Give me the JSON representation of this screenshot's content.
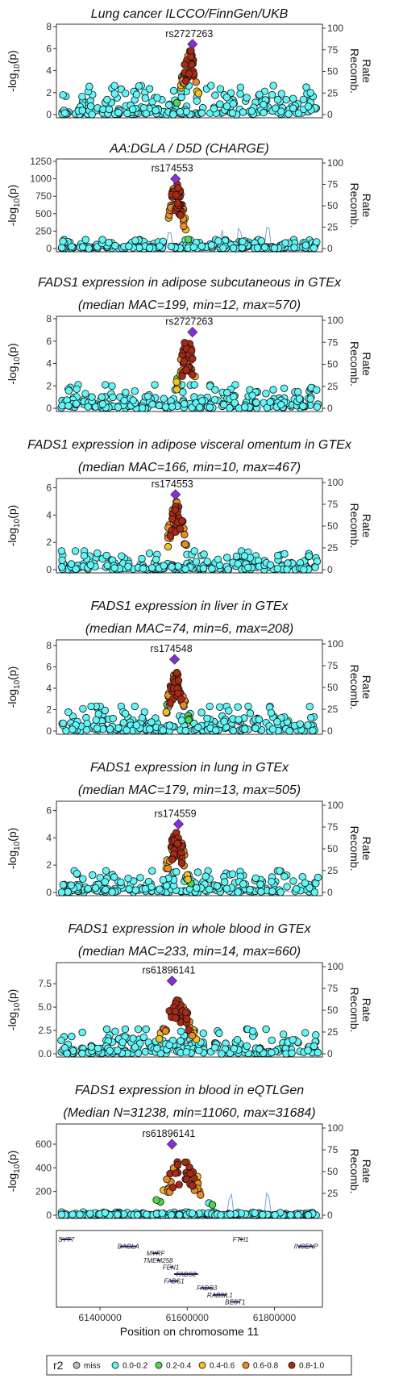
{
  "chart_data": {
    "type": "scatter",
    "description_axes": {
      "left_axis_label_prefix": "-log",
      "left_axis_label_sub": "10",
      "left_axis_label_suffix": "(p)",
      "right_axis_label_1": "Recomb.",
      "right_axis_label_2": "Rate",
      "right_ticks": [
        0,
        25,
        50,
        75,
        100
      ]
    },
    "x_axis": {
      "label": "Position on chromosome 11",
      "xlim": [
        61300000,
        61910000
      ],
      "ticks": [
        61400000,
        61600000,
        61800000
      ],
      "tick_labels": [
        "61400000",
        "61600000",
        "61800000"
      ]
    },
    "panels": [
      {
        "id": "lung-cancer",
        "title_lines": [
          "Lung cancer ILCCO/FinnGen/UKB"
        ],
        "ylim": [
          0,
          8
        ],
        "yticks": [
          0,
          2,
          4,
          6,
          8
        ],
        "ytick_labels": [
          "0",
          "2",
          "4",
          "6",
          "8"
        ],
        "lead_snp": "rs2727263",
        "lead_x": 61612000,
        "lead_y": 6.4,
        "peak_x": 61605000,
        "peak_y": 6.0,
        "peak_width": 22000,
        "baseline_max": 2.5,
        "recomb_spikes": []
      },
      {
        "id": "aa-dgla",
        "title_lines": [
          "AA:DGLA / D5D (CHARGE)"
        ],
        "ylim": [
          0,
          1250
        ],
        "yticks": [
          0,
          250,
          500,
          750,
          1000,
          1250
        ],
        "ytick_labels": [
          "0",
          "250",
          "500",
          "750",
          "1000",
          "1250"
        ],
        "lead_snp": "rs174553",
        "lead_x": 61573000,
        "lead_y": 1000,
        "peak_x": 61575000,
        "peak_y": 980,
        "peak_width": 20000,
        "baseline_max": 120,
        "recomb_spikes": [
          61560000,
          61680000,
          61720000,
          61785000
        ]
      },
      {
        "id": "adipose-subq",
        "title_lines": [
          "FADS1 expression in adipose subcutaneous in GTEx",
          "(median MAC=199, min=12, max=570)"
        ],
        "ylim": [
          0,
          8
        ],
        "yticks": [
          0,
          2,
          4,
          6,
          8
        ],
        "ytick_labels": [
          "0",
          "2",
          "4",
          "6",
          "8"
        ],
        "lead_snp": "rs2727263",
        "lead_x": 61612000,
        "lead_y": 6.8,
        "peak_x": 61600000,
        "peak_y": 6.2,
        "peak_width": 24000,
        "baseline_max": 2.0,
        "recomb_spikes": []
      },
      {
        "id": "adipose-visceral",
        "title_lines": [
          "FADS1 expression in adipose visceral omentum in GTEx",
          "(median MAC=166, min=10, max=467)"
        ],
        "ylim": [
          0,
          6.5
        ],
        "yticks": [
          0,
          2,
          4,
          6
        ],
        "ytick_labels": [
          "0",
          "2",
          "4",
          "6"
        ],
        "lead_snp": "rs174553",
        "lead_x": 61573000,
        "lead_y": 5.5,
        "peak_x": 61575000,
        "peak_y": 5.0,
        "peak_width": 24000,
        "baseline_max": 1.3,
        "recomb_spikes": []
      },
      {
        "id": "liver",
        "title_lines": [
          "FADS1 expression in liver in GTEx",
          "(median MAC=74, min=6, max=208)"
        ],
        "ylim": [
          0,
          8.3
        ],
        "yticks": [
          0,
          2,
          4,
          6,
          8
        ],
        "ytick_labels": [
          "0",
          "2",
          "4",
          "6",
          "8"
        ],
        "lead_snp": "rs174548",
        "lead_x": 61571000,
        "lead_y": 6.7,
        "peak_x": 61575000,
        "peak_y": 5.8,
        "peak_width": 24000,
        "baseline_max": 2.2,
        "recomb_spikes": []
      },
      {
        "id": "lung",
        "title_lines": [
          "FADS1 expression in lung in GTEx",
          "(median MAC=179, min=13, max=505)"
        ],
        "ylim": [
          0,
          6.5
        ],
        "yticks": [
          0,
          2,
          4,
          6
        ],
        "ytick_labels": [
          "0",
          "2",
          "4",
          "6"
        ],
        "lead_snp": "rs174559",
        "lead_x": 61580000,
        "lead_y": 5.0,
        "peak_x": 61575000,
        "peak_y": 4.6,
        "peak_width": 24000,
        "baseline_max": 1.5,
        "recomb_spikes": []
      },
      {
        "id": "whole-blood",
        "title_lines": [
          "FADS1 expression in whole blood in GTEx",
          "(median MAC=233, min=14, max=660)"
        ],
        "ylim": [
          0,
          9.5
        ],
        "yticks": [
          0,
          2.5,
          5,
          7.5
        ],
        "ytick_labels": [
          "0.0",
          "2.5",
          "5.0",
          "7.5"
        ],
        "lead_snp": "rs61896141",
        "lead_x": 61565000,
        "lead_y": 7.8,
        "peak_x": 61580000,
        "peak_y": 5.8,
        "peak_width": 40000,
        "baseline_max": 2.5,
        "recomb_spikes": []
      },
      {
        "id": "eqtlgen",
        "title_lines": [
          "FADS1 expression in blood in eQTLGen",
          "(Median N=31238, min=11060, max=31684)"
        ],
        "ylim": [
          0,
          750
        ],
        "yticks": [
          0,
          200,
          400,
          600
        ],
        "ytick_labels": [
          "0",
          "200",
          "400",
          "600"
        ],
        "lead_snp": "rs61896141",
        "lead_x": 61565000,
        "lead_y": 600,
        "peak_x": 61590000,
        "peak_y": 480,
        "peak_width": 50000,
        "baseline_max": 25,
        "recomb_spikes": [
          61700000,
          61785000
        ]
      }
    ],
    "genes": [
      {
        "name": "SYT7",
        "start": 61310000,
        "end": 61335000,
        "row": 0
      },
      {
        "name": "FTH1",
        "start": 61720000,
        "end": 61725000,
        "row": 0
      },
      {
        "name": "DAGLA",
        "start": 61445000,
        "end": 61485000,
        "row": 1
      },
      {
        "name": "INCENP",
        "start": 61855000,
        "end": 61890000,
        "row": 1
      },
      {
        "name": "MYRF",
        "start": 61520000,
        "end": 61535000,
        "row": 2
      },
      {
        "name": "TMEM258",
        "start": 61530000,
        "end": 61536000,
        "row": 3
      },
      {
        "name": "FEN1",
        "start": 61560000,
        "end": 61565000,
        "row": 4
      },
      {
        "name": "FADS2",
        "start": 61570000,
        "end": 61625000,
        "row": 5
      },
      {
        "name": "FADS1",
        "start": 61560000,
        "end": 61580000,
        "row": 6
      },
      {
        "name": "FADS3",
        "start": 61630000,
        "end": 61660000,
        "row": 7
      },
      {
        "name": "RAB3IL1",
        "start": 61660000,
        "end": 61690000,
        "row": 8
      },
      {
        "name": "BEST1",
        "start": 61700000,
        "end": 61720000,
        "row": 9
      }
    ],
    "legend": {
      "title": "r2",
      "placement": "bottom",
      "items": [
        {
          "label": "miss",
          "color": "#bebebe"
        },
        {
          "label": "0.0-0.2",
          "color": "#5ef6f6"
        },
        {
          "label": "0.2-0.4",
          "color": "#52d64b"
        },
        {
          "label": "0.4-0.6",
          "color": "#f2c21b"
        },
        {
          "label": "0.6-0.8",
          "color": "#ec8b22"
        },
        {
          "label": "0.8-1.0",
          "color": "#a82a14"
        }
      ],
      "lead_color": "#8a2be2"
    },
    "recomb_color": "#4f8fdc",
    "gene_color": "#1a1a7a"
  }
}
